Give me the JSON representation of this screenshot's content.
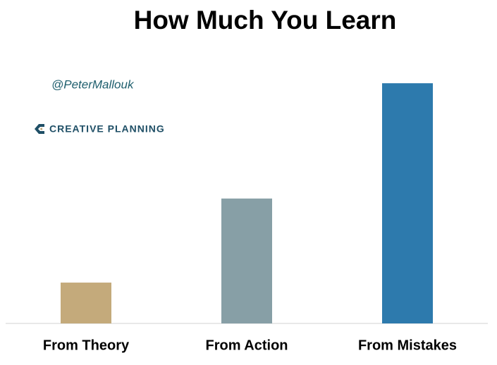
{
  "chart_data": {
    "type": "bar",
    "title": "How Much You Learn",
    "annotations": [
      "@PeterMallouk",
      "CREATIVE PLANNING"
    ],
    "categories": [
      "From Theory",
      "From Action",
      "From Mistakes"
    ],
    "values": [
      17,
      52,
      100
    ],
    "colors": [
      "#c4aa7b",
      "#879fa6",
      "#2d7aad"
    ],
    "ylim": [
      0,
      115
    ]
  }
}
